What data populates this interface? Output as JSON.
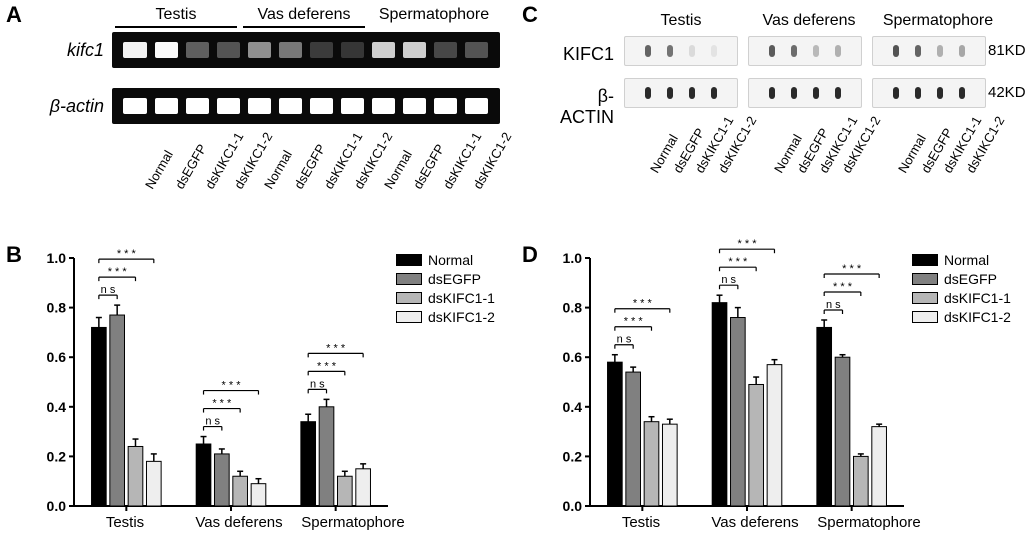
{
  "panels": {
    "A": "A",
    "B": "B",
    "C": "C",
    "D": "D"
  },
  "tissues": [
    "Testis",
    "Vas deferens",
    "Spermatophore"
  ],
  "lane_conditions": [
    "Normal",
    "dsEGFP",
    "dsKIKC1-1",
    "dsKIKC1-2"
  ],
  "panelA": {
    "rows": [
      {
        "label": "kifc1",
        "bg": "#0a0a0a",
        "band_color": "#ffffff",
        "band_profiles": [
          [
            0.95,
            0.98,
            0.35,
            0.3
          ],
          [
            0.55,
            0.45,
            0.2,
            0.18
          ],
          [
            0.8,
            0.8,
            0.25,
            0.3
          ]
        ]
      },
      {
        "label": "β-actin",
        "bg": "#0a0a0a",
        "band_color": "#ffffff",
        "band_profiles": [
          [
            1,
            1,
            1,
            1
          ],
          [
            1,
            1,
            1,
            1
          ],
          [
            1,
            1,
            1,
            1
          ]
        ]
      }
    ]
  },
  "panelC": {
    "rows": [
      {
        "label": "KIFC1",
        "bg": "light",
        "band_color": "#4a4a4a",
        "kd": "81KD",
        "band_profiles": [
          [
            0.85,
            0.75,
            0.15,
            0.1
          ],
          [
            0.9,
            0.8,
            0.35,
            0.4
          ],
          [
            0.95,
            0.85,
            0.4,
            0.45
          ]
        ]
      },
      {
        "label": "β-ACTIN",
        "bg": "light",
        "band_color": "#2a2a2a",
        "kd": "42KD",
        "band_profiles": [
          [
            1,
            1,
            1,
            1
          ],
          [
            1,
            1,
            1,
            1
          ],
          [
            1,
            1,
            1,
            1
          ]
        ]
      }
    ]
  },
  "chart_common": {
    "series": [
      {
        "name": "Normal",
        "color": "#000000"
      },
      {
        "name": "dsEGFP",
        "color": "#808080"
      },
      {
        "name": "dsKIFC1-1",
        "color": "#b6b6b6"
      },
      {
        "name": "dsKIFC1-2",
        "color": "#eeeeee"
      }
    ],
    "sig_labels": {
      "ns": "n s",
      "three": "* * *"
    },
    "axis_color": "#000000",
    "tick_fontsize": 14,
    "bar_border": "#000000"
  },
  "panelB": {
    "ylim": [
      0,
      1.0
    ],
    "ytick_step": 0.2,
    "groups": [
      {
        "name": "Testis",
        "values": [
          0.72,
          0.77,
          0.24,
          0.18
        ],
        "err": [
          0.04,
          0.04,
          0.03,
          0.03
        ],
        "sig": [
          "ns",
          "three",
          "three"
        ]
      },
      {
        "name": "Vas deferens",
        "values": [
          0.25,
          0.21,
          0.12,
          0.09
        ],
        "err": [
          0.03,
          0.02,
          0.02,
          0.02
        ],
        "sig": [
          "ns",
          "three",
          "three"
        ]
      },
      {
        "name": "Spermatophore",
        "values": [
          0.34,
          0.4,
          0.12,
          0.15
        ],
        "err": [
          0.03,
          0.03,
          0.02,
          0.02
        ],
        "sig": [
          "ns",
          "three",
          "three"
        ]
      }
    ]
  },
  "panelD": {
    "ylim": [
      0,
      1.0
    ],
    "ytick_step": 0.2,
    "groups": [
      {
        "name": "Testis",
        "values": [
          0.58,
          0.54,
          0.34,
          0.33
        ],
        "err": [
          0.03,
          0.02,
          0.02,
          0.02
        ],
        "sig": [
          "ns",
          "three",
          "three"
        ]
      },
      {
        "name": "Vas deferens",
        "values": [
          0.82,
          0.76,
          0.49,
          0.57
        ],
        "err": [
          0.03,
          0.04,
          0.03,
          0.02
        ],
        "sig": [
          "ns",
          "three",
          "three"
        ]
      },
      {
        "name": "Spermatophore",
        "values": [
          0.72,
          0.6,
          0.2,
          0.32
        ],
        "err": [
          0.03,
          0.01,
          0.01,
          0.01
        ],
        "sig": [
          "ns",
          "three",
          "three"
        ]
      }
    ]
  }
}
